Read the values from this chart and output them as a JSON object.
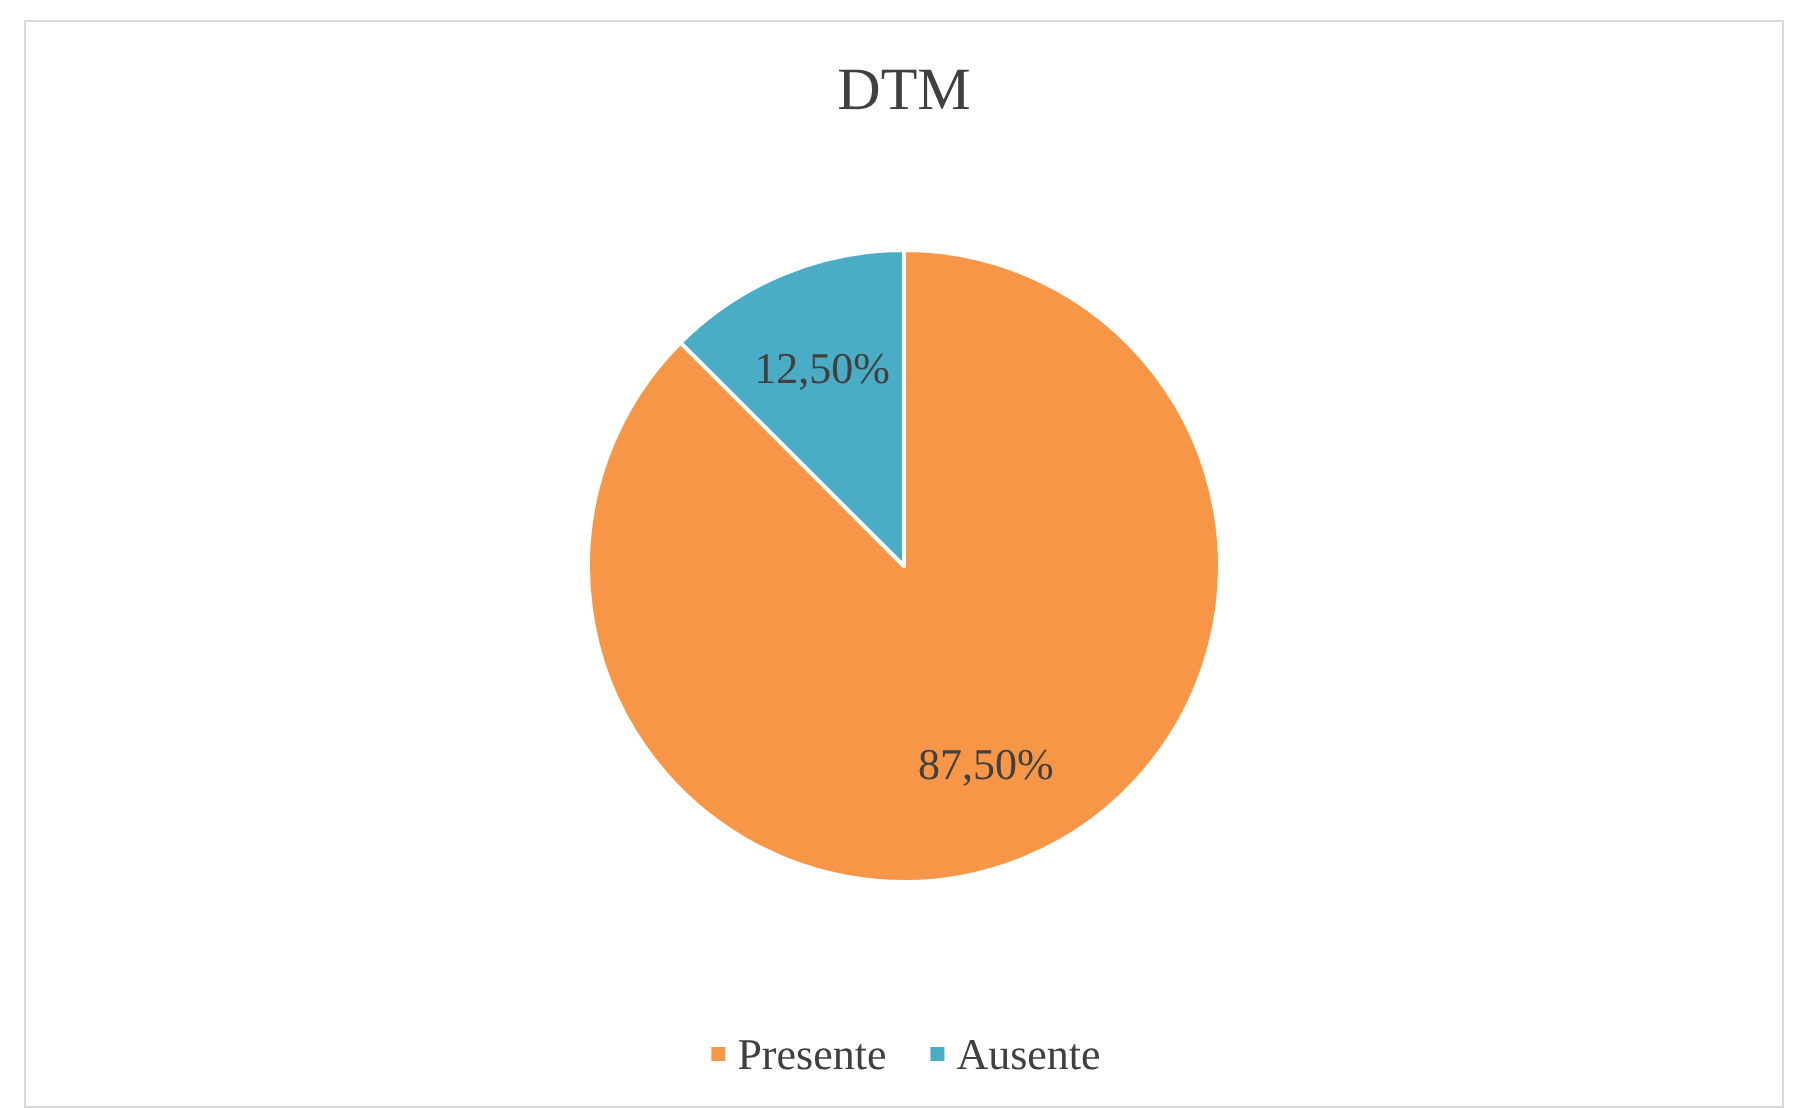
{
  "chart_data": {
    "type": "pie",
    "title": "DTM",
    "categories": [
      "Presente",
      "Ausente"
    ],
    "values": [
      87.5,
      12.5
    ],
    "colors": [
      "#f79646",
      "#4bacc6"
    ],
    "value_labels": [
      "87,50%",
      "12,50%"
    ],
    "legend": "bottom"
  }
}
